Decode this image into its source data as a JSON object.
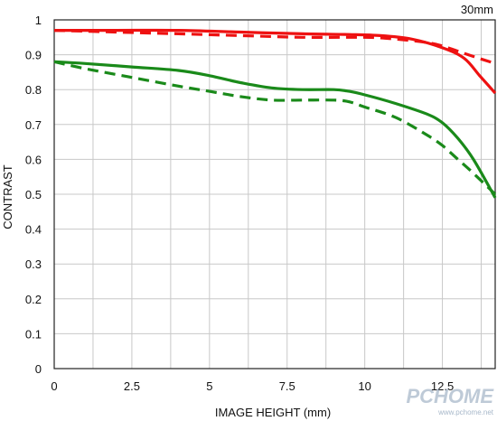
{
  "chart_data": {
    "type": "line",
    "title": "",
    "focal_length_label": "30mm",
    "xlabel": "IMAGE HEIGHT (mm)",
    "ylabel": "CONTRAST",
    "xlim": [
      0,
      14.2
    ],
    "ylim": [
      0,
      1
    ],
    "x_ticks": [
      "0",
      "2.5",
      "5",
      "7.5",
      "10",
      "12.5"
    ],
    "x_tick_values": [
      0,
      2.5,
      5,
      7.5,
      10,
      12.5
    ],
    "y_ticks": [
      "0",
      "0.1",
      "0.2",
      "0.3",
      "0.4",
      "0.5",
      "0.6",
      "0.7",
      "0.8",
      "0.9",
      "1"
    ],
    "y_tick_values": [
      0,
      0.1,
      0.2,
      0.3,
      0.4,
      0.5,
      0.6,
      0.7,
      0.8,
      0.9,
      1.0
    ],
    "x_grid_values": [
      0,
      1.25,
      2.5,
      3.75,
      5,
      6.25,
      7.5,
      8.75,
      10,
      11.25,
      12.5,
      13.75
    ],
    "grid": true,
    "legend": "none",
    "series": [
      {
        "color": "#ee1111",
        "dash": false,
        "x": [
          0,
          2,
          4,
          6,
          8,
          9.5,
          10.5,
          11.5,
          12.5,
          13.2,
          13.7,
          14.2
        ],
        "y": [
          0.97,
          0.97,
          0.97,
          0.965,
          0.96,
          0.958,
          0.955,
          0.945,
          0.92,
          0.89,
          0.84,
          0.79
        ]
      },
      {
        "color": "#ee1111",
        "dash": true,
        "x": [
          0,
          2,
          4,
          6,
          8,
          10,
          11,
          12,
          12.5,
          13,
          13.5,
          14.2
        ],
        "y": [
          0.97,
          0.965,
          0.96,
          0.955,
          0.95,
          0.95,
          0.945,
          0.935,
          0.925,
          0.91,
          0.895,
          0.875
        ]
      },
      {
        "color": "#1a8a1a",
        "dash": false,
        "x": [
          0,
          1,
          2.5,
          4,
          5,
          6,
          7,
          8,
          9,
          9.5,
          10,
          11,
          12,
          12.5,
          13,
          13.5,
          14.2
        ],
        "y": [
          0.88,
          0.875,
          0.865,
          0.855,
          0.84,
          0.82,
          0.805,
          0.8,
          0.8,
          0.795,
          0.785,
          0.76,
          0.73,
          0.705,
          0.66,
          0.6,
          0.49
        ]
      },
      {
        "color": "#1a8a1a",
        "dash": true,
        "x": [
          0,
          1,
          2.5,
          4,
          5,
          6,
          7,
          8,
          9,
          9.5,
          10,
          11,
          12,
          12.5,
          13,
          13.5,
          14.2
        ],
        "y": [
          0.88,
          0.86,
          0.835,
          0.81,
          0.795,
          0.78,
          0.77,
          0.77,
          0.77,
          0.765,
          0.75,
          0.72,
          0.67,
          0.64,
          0.6,
          0.56,
          0.5
        ]
      }
    ]
  },
  "watermark": {
    "logo": "PCHOME",
    "url": "www.pchome.net"
  }
}
